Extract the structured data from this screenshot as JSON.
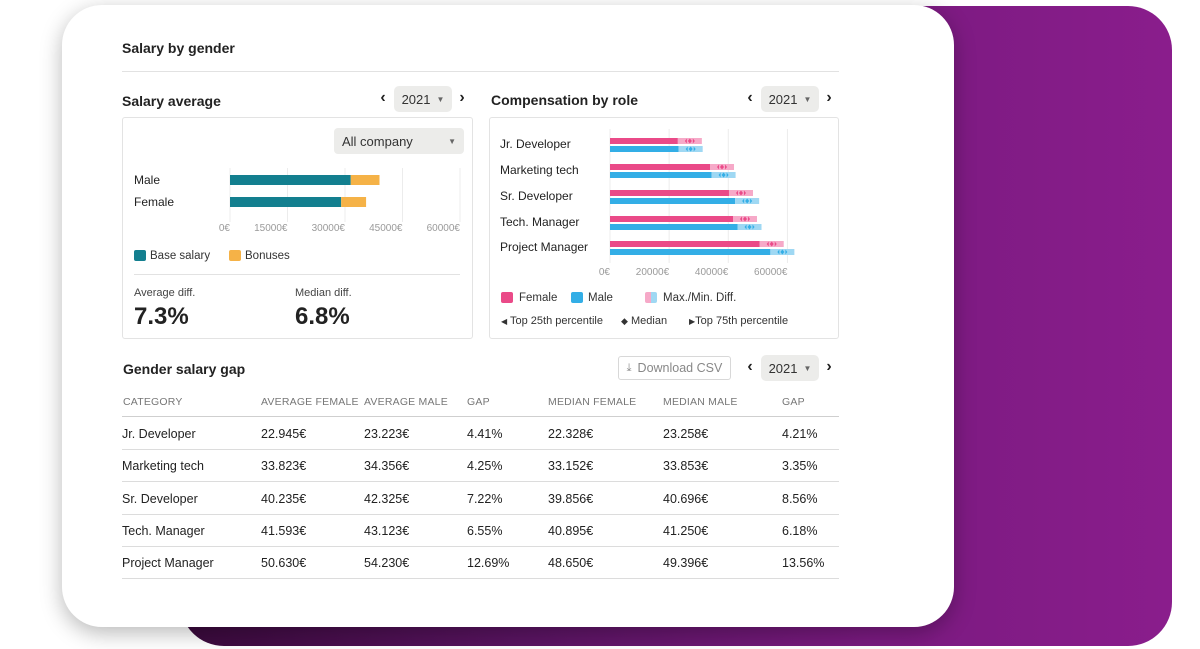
{
  "page": {
    "title": "Salary by gender"
  },
  "salary_average": {
    "title": "Salary average",
    "year": "2021",
    "scope": "All company",
    "legend": {
      "base": "Base salary",
      "bonus": "Bonuses"
    },
    "stats": {
      "avg_label": "Average diff.",
      "avg_value": "7.3%",
      "median_label": "Median diff.",
      "median_value": "6.8%"
    }
  },
  "compensation": {
    "title": "Compensation by role",
    "year": "2021",
    "legend": {
      "female": "Female",
      "male": "Male",
      "maxmin": "Max./Min. Diff.",
      "p25": "Top 25th percentile",
      "median": "Median",
      "p75": "Top 75th percentile"
    }
  },
  "gap": {
    "title": "Gender salary gap",
    "download": "Download CSV",
    "year": "2021",
    "headers": [
      "CATEGORY",
      "AVERAGE FEMALE",
      "AVERAGE MALE",
      "GAP",
      "MEDIAN FEMALE",
      "MEDIAN MALE",
      "GAP"
    ],
    "rows": [
      [
        "Jr. Developer",
        "22.945€",
        "23.223€",
        "4.41%",
        "22.328€",
        "23.258€",
        "4.21%"
      ],
      [
        "Marketing tech",
        "33.823€",
        "34.356€",
        "4.25%",
        "33.152€",
        "33.853€",
        "3.35%"
      ],
      [
        "Sr. Developer",
        "40.235€",
        "42.325€",
        "7.22%",
        "39.856€",
        "40.696€",
        "8.56%"
      ],
      [
        "Tech. Manager",
        "41.593€",
        "43.123€",
        "6.55%",
        "40.895€",
        "41.250€",
        "6.18%"
      ],
      [
        "Project Manager",
        "50.630€",
        "54.230€",
        "12.69%",
        "48.650€",
        "49.396€",
        "13.56%"
      ]
    ]
  },
  "colors": {
    "base": "#137f8f",
    "bonus": "#f5b247",
    "female": "#ea4a88",
    "male": "#33aee6",
    "female_light": "#f6a9c8",
    "male_light": "#9fd8f3"
  },
  "chart_data": [
    {
      "type": "bar",
      "title": "Salary average",
      "categories": [
        "Male",
        "Female"
      ],
      "series": [
        {
          "name": "Base salary",
          "values": [
            31500,
            29000
          ]
        },
        {
          "name": "Bonuses",
          "values": [
            7500,
            6500
          ]
        }
      ],
      "xticks": [
        "0€",
        "15000€",
        "30000€",
        "45000€",
        "60000€"
      ],
      "xlim": [
        0,
        60000
      ],
      "stacked": true,
      "orientation": "horizontal"
    },
    {
      "type": "bar",
      "title": "Compensation by role",
      "categories": [
        "Jr. Developer",
        "Marketing tech",
        "Sr. Developer",
        "Tech. Manager",
        "Project Manager"
      ],
      "series": [
        {
          "name": "Female",
          "values": [
            22945,
            33823,
            40235,
            41593,
            50630
          ]
        },
        {
          "name": "Male",
          "values": [
            23223,
            34356,
            42325,
            43123,
            54230
          ]
        }
      ],
      "xticks": [
        "0€",
        "20000€",
        "40000€",
        "60000€"
      ],
      "xlim": [
        0,
        70000
      ],
      "orientation": "horizontal"
    }
  ]
}
